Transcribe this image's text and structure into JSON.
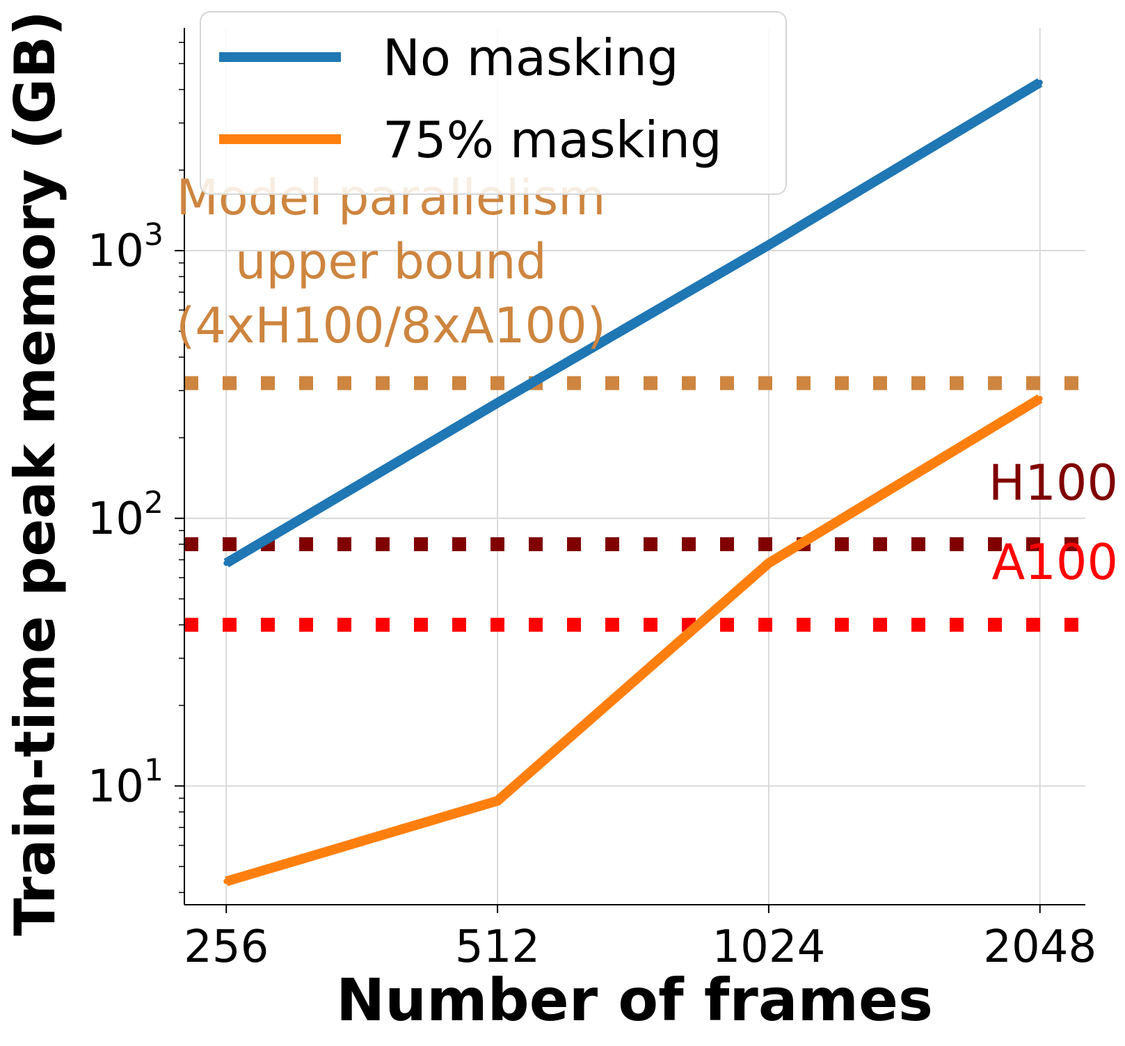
{
  "chart_data": {
    "type": "line",
    "title": "",
    "xlabel": "Number of frames",
    "ylabel": "Train-time peak memory (GB)",
    "x_scale": "log2",
    "y_scale": "log10",
    "categories": [
      "256",
      "512",
      "1024",
      "2048"
    ],
    "x": [
      256,
      512,
      1024,
      2048
    ],
    "xlim": [
      230,
      2300
    ],
    "ylim": [
      3.6,
      6800
    ],
    "y_ticks": [
      10,
      100,
      1000
    ],
    "y_tick_labels": [
      "10",
      "10",
      "10"
    ],
    "y_tick_exponents": [
      "1",
      "2",
      "3"
    ],
    "grid": true,
    "series": [
      {
        "name": "No masking",
        "color": "#1f77b4",
        "values": [
          68,
          270,
          1050,
          4250
        ]
      },
      {
        "name": "75% masking",
        "color": "#ff7f0e",
        "values": [
          4.4,
          8.8,
          68,
          280
        ]
      }
    ],
    "reference_lines": [
      {
        "name": "model-parallelism",
        "label_lines": [
          "Model parallelism",
          "upper bound",
          "(4xH100/8xA100)"
        ],
        "value": 320,
        "color": "#cd853f"
      },
      {
        "name": "h100",
        "label_lines": [
          "H100"
        ],
        "value": 80,
        "color": "#800000"
      },
      {
        "name": "a100",
        "label_lines": [
          "A100"
        ],
        "value": 40,
        "color": "#ff0000"
      }
    ],
    "legend": {
      "position": "top-left"
    }
  }
}
